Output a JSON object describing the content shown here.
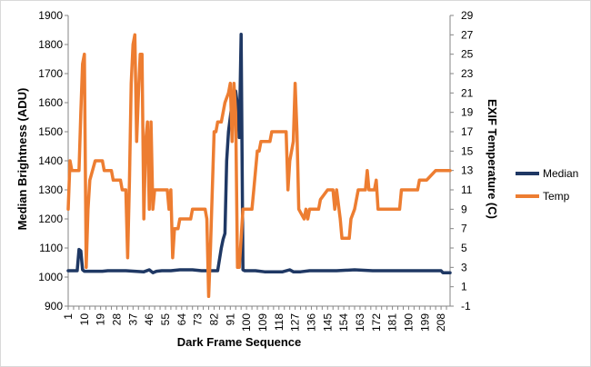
{
  "chart_data": {
    "type": "line",
    "title": "",
    "xlabel": "Dark Frame Sequence",
    "ylabel": "Median Brightness (ADU)",
    "y2label": "EXIF Temperature (C)",
    "xlim": [
      1,
      213
    ],
    "ylim": [
      900,
      1900
    ],
    "y2lim": [
      -1,
      29
    ],
    "x_tick_labels": [
      "1",
      "10",
      "19",
      "28",
      "37",
      "46",
      "55",
      "64",
      "73",
      "82",
      "91",
      "100",
      "109",
      "118",
      "127",
      "136",
      "145",
      "154",
      "163",
      "172",
      "181",
      "190",
      "199",
      "208"
    ],
    "y_tick_labels": [
      "900",
      "1000",
      "1100",
      "1200",
      "1300",
      "1400",
      "1500",
      "1600",
      "1700",
      "1800",
      "1900"
    ],
    "y2_tick_labels": [
      "-1",
      "1",
      "3",
      "5",
      "7",
      "9",
      "11",
      "13",
      "15",
      "17",
      "19",
      "21",
      "23",
      "25",
      "27",
      "29"
    ],
    "grid": false,
    "legend": "right",
    "series": [
      {
        "name": "Median",
        "axis": "left",
        "color": "#1f3864",
        "points": [
          [
            1,
            1022
          ],
          [
            6,
            1022
          ],
          [
            7,
            1095
          ],
          [
            8,
            1090
          ],
          [
            9,
            1025
          ],
          [
            10,
            1020
          ],
          [
            15,
            1020
          ],
          [
            20,
            1020
          ],
          [
            23,
            1022
          ],
          [
            28,
            1022
          ],
          [
            33,
            1022
          ],
          [
            38,
            1020
          ],
          [
            43,
            1018
          ],
          [
            46,
            1025
          ],
          [
            48,
            1015
          ],
          [
            50,
            1020
          ],
          [
            53,
            1022
          ],
          [
            58,
            1022
          ],
          [
            63,
            1025
          ],
          [
            70,
            1025
          ],
          [
            75,
            1022
          ],
          [
            80,
            1022
          ],
          [
            84,
            1022
          ],
          [
            86,
            1100
          ],
          [
            87,
            1130
          ],
          [
            88,
            1150
          ],
          [
            89,
            1400
          ],
          [
            90,
            1500
          ],
          [
            91,
            1550
          ],
          [
            92,
            1600
          ],
          [
            93,
            1610
          ],
          [
            94,
            1640
          ],
          [
            95,
            1590
          ],
          [
            96,
            1480
          ],
          [
            97,
            1835
          ],
          [
            98,
            1025
          ],
          [
            99,
            1022
          ],
          [
            105,
            1022
          ],
          [
            110,
            1018
          ],
          [
            115,
            1018
          ],
          [
            120,
            1018
          ],
          [
            124,
            1025
          ],
          [
            126,
            1018
          ],
          [
            130,
            1018
          ],
          [
            135,
            1022
          ],
          [
            140,
            1022
          ],
          [
            150,
            1022
          ],
          [
            160,
            1025
          ],
          [
            170,
            1022
          ],
          [
            180,
            1022
          ],
          [
            190,
            1022
          ],
          [
            200,
            1022
          ],
          [
            208,
            1022
          ],
          [
            209,
            1015
          ],
          [
            213,
            1015
          ]
        ]
      },
      {
        "name": "Temp",
        "axis": "right",
        "color": "#ed7d31",
        "points": [
          [
            1,
            9
          ],
          [
            2,
            14
          ],
          [
            3,
            13
          ],
          [
            7,
            13
          ],
          [
            8,
            19
          ],
          [
            9,
            24
          ],
          [
            10,
            25
          ],
          [
            11,
            3
          ],
          [
            12,
            9
          ],
          [
            13,
            12
          ],
          [
            16,
            14
          ],
          [
            20,
            14
          ],
          [
            21,
            13
          ],
          [
            25,
            13
          ],
          [
            26,
            12
          ],
          [
            30,
            12
          ],
          [
            31,
            11
          ],
          [
            33,
            11
          ],
          [
            34,
            4
          ],
          [
            35,
            12
          ],
          [
            36,
            22
          ],
          [
            37,
            26
          ],
          [
            38,
            27
          ],
          [
            39,
            16
          ],
          [
            40,
            21
          ],
          [
            41,
            25
          ],
          [
            42,
            25
          ],
          [
            43,
            8
          ],
          [
            44,
            16
          ],
          [
            45,
            18
          ],
          [
            46,
            9
          ],
          [
            47,
            18
          ],
          [
            48,
            9
          ],
          [
            49,
            11
          ],
          [
            56,
            11
          ],
          [
            57,
            9
          ],
          [
            58,
            11
          ],
          [
            59,
            4
          ],
          [
            60,
            7
          ],
          [
            62,
            7
          ],
          [
            63,
            8
          ],
          [
            69,
            8
          ],
          [
            70,
            9
          ],
          [
            76,
            9
          ],
          [
            77,
            9
          ],
          [
            78,
            8
          ],
          [
            79,
            0
          ],
          [
            80,
            5
          ],
          [
            82,
            17
          ],
          [
            83,
            17
          ],
          [
            84,
            18
          ],
          [
            86,
            18
          ],
          [
            87,
            19
          ],
          [
            88,
            20
          ],
          [
            90,
            21
          ],
          [
            91,
            22
          ],
          [
            92,
            16
          ],
          [
            93,
            22
          ],
          [
            94,
            19
          ],
          [
            95,
            3
          ],
          [
            96,
            3
          ],
          [
            98,
            9
          ],
          [
            103,
            9
          ],
          [
            104,
            11
          ],
          [
            106,
            15
          ],
          [
            107,
            15
          ],
          [
            108,
            16
          ],
          [
            113,
            16
          ],
          [
            114,
            17
          ],
          [
            122,
            17
          ],
          [
            123,
            11
          ],
          [
            124,
            14
          ],
          [
            126,
            16
          ],
          [
            127,
            22
          ],
          [
            128,
            17
          ],
          [
            129,
            9
          ],
          [
            132,
            8
          ],
          [
            133,
            9
          ],
          [
            134,
            8
          ],
          [
            135,
            9
          ],
          [
            140,
            9
          ],
          [
            141,
            10
          ],
          [
            145,
            11
          ],
          [
            148,
            11
          ],
          [
            149,
            9
          ],
          [
            150,
            11
          ],
          [
            152,
            8
          ],
          [
            153,
            6
          ],
          [
            157,
            6
          ],
          [
            158,
            8
          ],
          [
            160,
            9
          ],
          [
            162,
            11
          ],
          [
            166,
            11
          ],
          [
            167,
            13
          ],
          [
            168,
            11
          ],
          [
            171,
            11
          ],
          [
            172,
            12
          ],
          [
            173,
            9
          ],
          [
            185,
            9
          ],
          [
            186,
            11
          ],
          [
            195,
            11
          ],
          [
            196,
            12
          ],
          [
            200,
            12
          ],
          [
            205,
            13
          ],
          [
            213,
            13
          ]
        ]
      }
    ]
  }
}
